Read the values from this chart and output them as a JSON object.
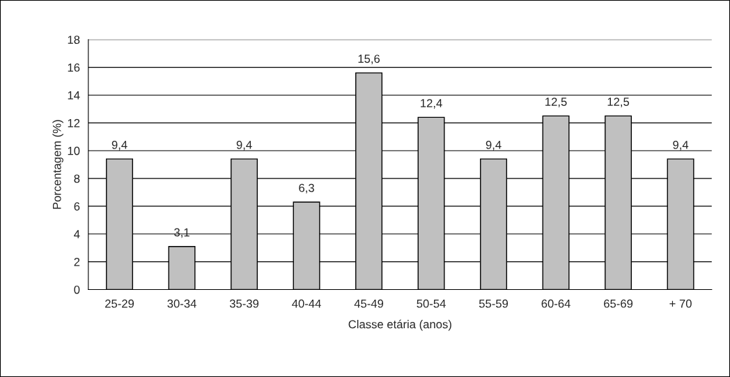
{
  "chart_data": {
    "type": "bar",
    "xlabel": "Classe etária (anos)",
    "ylabel": "Porcentagem (%)",
    "categories": [
      "25-29",
      "30-34",
      "35-39",
      "40-44",
      "45-49",
      "50-54",
      "55-59",
      "60-64",
      "65-69",
      "+ 70"
    ],
    "values": [
      9.4,
      3.1,
      9.4,
      6.3,
      15.6,
      12.4,
      9.4,
      12.5,
      12.5,
      9.4
    ],
    "value_labels": [
      "9,4",
      "3,1",
      "9,4",
      "6,3",
      "15,6",
      "12,4",
      "9,4",
      "12,5",
      "12,5",
      "9,4"
    ],
    "color": "#c0c0c0",
    "ylim": [
      0,
      18
    ],
    "yticks": [
      0,
      2,
      4,
      6,
      8,
      10,
      12,
      14,
      16,
      18
    ],
    "grid": "y",
    "legend": false
  }
}
